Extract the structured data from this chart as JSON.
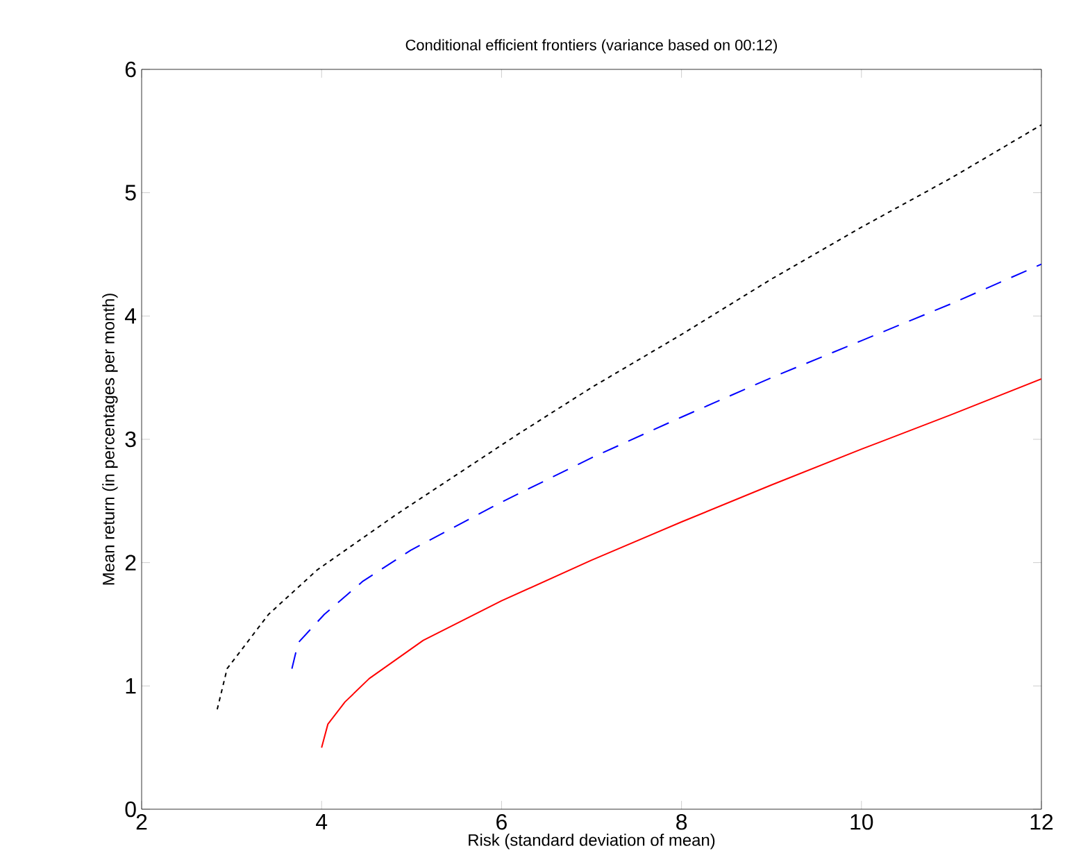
{
  "chart_data": {
    "type": "line",
    "title": "Conditional efficient frontiers (variance based on 00:12)",
    "xlabel": "Risk (standard deviation of mean)",
    "ylabel": "Mean return (in percentages per month)",
    "xlim": [
      2,
      12
    ],
    "ylim": [
      0,
      6
    ],
    "xticks": [
      2,
      4,
      6,
      8,
      10,
      12
    ],
    "yticks": [
      0,
      1,
      2,
      3,
      4,
      5,
      6
    ],
    "grid": false,
    "marker": "none",
    "series": [
      {
        "color": "#000000",
        "line_style": "dotted",
        "x": [
          2.84,
          2.95,
          3.41,
          3.95,
          4.83,
          6.18,
          7,
          8,
          9,
          10,
          11,
          12
        ],
        "values": [
          0.81,
          1.14,
          1.58,
          1.94,
          2.39,
          3.04,
          3.42,
          3.85,
          4.3,
          4.72,
          5.12,
          5.55
        ]
      },
      {
        "color": "#0000ff",
        "line_style": "dashed",
        "x": [
          3.67,
          3.74,
          4.03,
          4.46,
          4.99,
          5.97,
          7,
          8,
          9,
          10,
          11,
          12
        ],
        "values": [
          1.14,
          1.35,
          1.58,
          1.85,
          2.1,
          2.48,
          2.85,
          3.18,
          3.5,
          3.8,
          4.1,
          4.42
        ]
      },
      {
        "color": "#ff0000",
        "line_style": "solid",
        "x": [
          4.0,
          4.07,
          4.26,
          4.53,
          5.13,
          6.0,
          7,
          8,
          9,
          10,
          11,
          12
        ],
        "values": [
          0.5,
          0.69,
          0.87,
          1.06,
          1.37,
          1.69,
          2.02,
          2.33,
          2.63,
          2.92,
          3.2,
          3.49
        ]
      }
    ]
  }
}
